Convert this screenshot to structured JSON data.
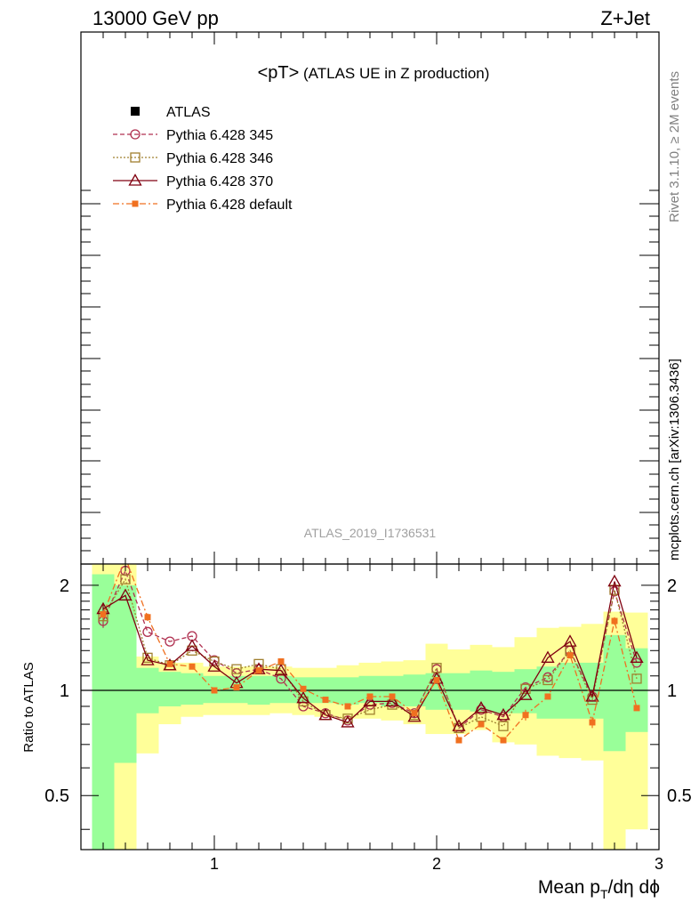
{
  "header": {
    "left": "13000 GeV pp",
    "right": "Z+Jet"
  },
  "plot_title": {
    "main": "<pT>",
    "sub": " (ATLAS UE in Z production)"
  },
  "watermark": "ATLAS_2019_I1736531",
  "side_labels": {
    "rivet": "Rivet 3.1.10, ≥ 2M events",
    "mcplots": "mcplots.cern.ch [arXiv:1306.3436]"
  },
  "legend": [
    {
      "label": "ATLAS",
      "color": "#000000",
      "marker": "square-filled",
      "dash": ""
    },
    {
      "label": "Pythia 6.428 345",
      "color": "#b03050",
      "marker": "circle",
      "dash": "5,3"
    },
    {
      "label": "Pythia 6.428 346",
      "color": "#a08030",
      "marker": "square",
      "dash": "2,2"
    },
    {
      "label": "Pythia 6.428 370",
      "color": "#800010",
      "marker": "triangle",
      "dash": ""
    },
    {
      "label": "Pythia 6.428 default",
      "color": "#f07020",
      "marker": "square-filled",
      "dash": "7,3,2,3"
    }
  ],
  "chart_data": {
    "type": "line",
    "xlabel": "Mean p_T/dη dϕ",
    "ylabel": "Ratio to ATLAS",
    "xlim": [
      0.4,
      3.0
    ],
    "ylim": [
      0.35,
      2.3
    ],
    "yscale": "log",
    "xticks": [
      1,
      2,
      3
    ],
    "xtick_labels": [
      "1",
      "2",
      "3"
    ],
    "yticks": [
      0.5,
      1,
      2
    ],
    "ytick_labels": [
      "0.5",
      "1",
      "2"
    ],
    "reference_line": 1,
    "bin_edges": [
      0.45,
      0.55,
      0.65,
      0.75,
      0.85,
      0.95,
      1.05,
      1.15,
      1.25,
      1.35,
      1.45,
      1.55,
      1.65,
      1.75,
      1.85,
      1.95,
      2.05,
      2.15,
      2.25,
      2.35,
      2.45,
      2.55,
      2.65,
      2.75,
      2.85,
      2.95
    ],
    "x": [
      0.5,
      0.6,
      0.7,
      0.8,
      0.9,
      1.0,
      1.1,
      1.2,
      1.3,
      1.4,
      1.5,
      1.6,
      1.7,
      1.8,
      1.9,
      2.0,
      2.1,
      2.2,
      2.3,
      2.4,
      2.5,
      2.6,
      2.7,
      2.8,
      2.9
    ],
    "band_green": {
      "low": [
        0.35,
        0.62,
        0.86,
        0.9,
        0.91,
        0.92,
        0.92,
        0.91,
        0.92,
        0.92,
        0.92,
        0.91,
        0.92,
        0.9,
        0.9,
        0.88,
        0.88,
        0.87,
        0.86,
        0.86,
        0.83,
        0.83,
        0.83,
        0.67,
        0.76
      ],
      "high": [
        2.15,
        2.0,
        1.16,
        1.13,
        1.12,
        1.1,
        1.1,
        1.1,
        1.1,
        1.09,
        1.09,
        1.09,
        1.1,
        1.1,
        1.11,
        1.12,
        1.12,
        1.14,
        1.13,
        1.15,
        1.17,
        1.2,
        1.2,
        1.44,
        1.32
      ]
    },
    "band_yellow": {
      "low": [
        0.35,
        0.35,
        0.66,
        0.8,
        0.84,
        0.85,
        0.85,
        0.85,
        0.86,
        0.85,
        0.84,
        0.83,
        0.83,
        0.82,
        0.8,
        0.75,
        0.75,
        0.77,
        0.71,
        0.7,
        0.65,
        0.64,
        0.63,
        0.35,
        0.4
      ],
      "high": [
        2.3,
        2.3,
        1.25,
        1.2,
        1.2,
        1.17,
        1.17,
        1.17,
        1.17,
        1.16,
        1.16,
        1.18,
        1.2,
        1.21,
        1.22,
        1.36,
        1.31,
        1.35,
        1.33,
        1.42,
        1.51,
        1.52,
        1.55,
        1.68,
        1.67
      ]
    },
    "series": [
      {
        "name": "Pythia 6.428 345",
        "color": "#b03050",
        "marker": "circle",
        "dash": "5,3",
        "values": [
          1.58,
          2.2,
          1.47,
          1.38,
          1.43,
          1.22,
          1.12,
          1.15,
          1.08,
          0.9,
          0.86,
          0.82,
          0.91,
          0.92,
          0.86,
          1.15,
          0.78,
          0.88,
          0.84,
          1.02,
          1.09,
          1.3,
          0.96,
          1.92,
          1.2
        ],
        "errors": [
          0.07,
          0.0,
          0.0,
          0.0,
          0.0,
          0.0,
          0.0,
          0.0,
          0.0,
          0.0,
          0.0,
          0.0,
          0.0,
          0.0,
          0.0,
          0.0,
          0.0,
          0.0,
          0.0,
          0.0,
          0.0,
          0.0,
          0.0,
          0.0,
          0.0
        ]
      },
      {
        "name": "Pythia 6.428 346",
        "color": "#a08030",
        "marker": "square",
        "dash": "2,2",
        "values": [
          1.63,
          2.08,
          1.24,
          1.18,
          1.3,
          1.21,
          1.15,
          1.19,
          1.15,
          0.93,
          0.85,
          0.83,
          0.88,
          0.91,
          0.85,
          1.16,
          0.78,
          0.84,
          0.79,
          1.01,
          1.07,
          1.3,
          0.94,
          1.94,
          1.08
        ],
        "errors": [
          0.05,
          0.0,
          0.0,
          0.0,
          0.0,
          0.0,
          0.0,
          0.0,
          0.0,
          0.0,
          0.0,
          0.0,
          0.0,
          0.0,
          0.0,
          0.0,
          0.0,
          0.0,
          0.0,
          0.0,
          0.0,
          0.0,
          0.0,
          0.0,
          0.0
        ]
      },
      {
        "name": "Pythia 6.428 370",
        "color": "#800010",
        "marker": "triangle",
        "dash": "",
        "values": [
          1.71,
          1.87,
          1.22,
          1.18,
          1.34,
          1.17,
          1.05,
          1.15,
          1.14,
          0.95,
          0.85,
          0.81,
          0.93,
          0.93,
          0.84,
          1.08,
          0.79,
          0.89,
          0.85,
          0.97,
          1.24,
          1.38,
          0.96,
          2.05,
          1.24
        ],
        "errors": [
          0.07,
          0.0,
          0.0,
          0.0,
          0.0,
          0.0,
          0.0,
          0.0,
          0.0,
          0.0,
          0.0,
          0.0,
          0.0,
          0.0,
          0.0,
          0.0,
          0.0,
          0.0,
          0.0,
          0.0,
          0.0,
          0.0,
          0.0,
          0.0,
          0.0
        ]
      },
      {
        "name": "Pythia 6.428 default",
        "color": "#f07020",
        "marker": "square-filled",
        "dash": "7,3,2,3",
        "values": [
          1.65,
          2.4,
          1.62,
          1.19,
          1.17,
          1.0,
          1.02,
          1.14,
          1.21,
          1.01,
          0.94,
          0.9,
          0.96,
          0.96,
          0.86,
          1.07,
          0.72,
          0.8,
          0.72,
          0.85,
          0.96,
          1.26,
          0.81,
          1.58,
          0.89
        ],
        "errors": [
          0.04,
          0.0,
          0.04,
          0.0,
          0.0,
          0.0,
          0.0,
          0.0,
          0.0,
          0.0,
          0.0,
          0.0,
          0.0,
          0.0,
          0.0,
          0.0,
          0.0,
          0.0,
          0.0,
          0.03,
          0.0,
          0.0,
          0.03,
          0.04,
          0.0
        ]
      }
    ]
  }
}
